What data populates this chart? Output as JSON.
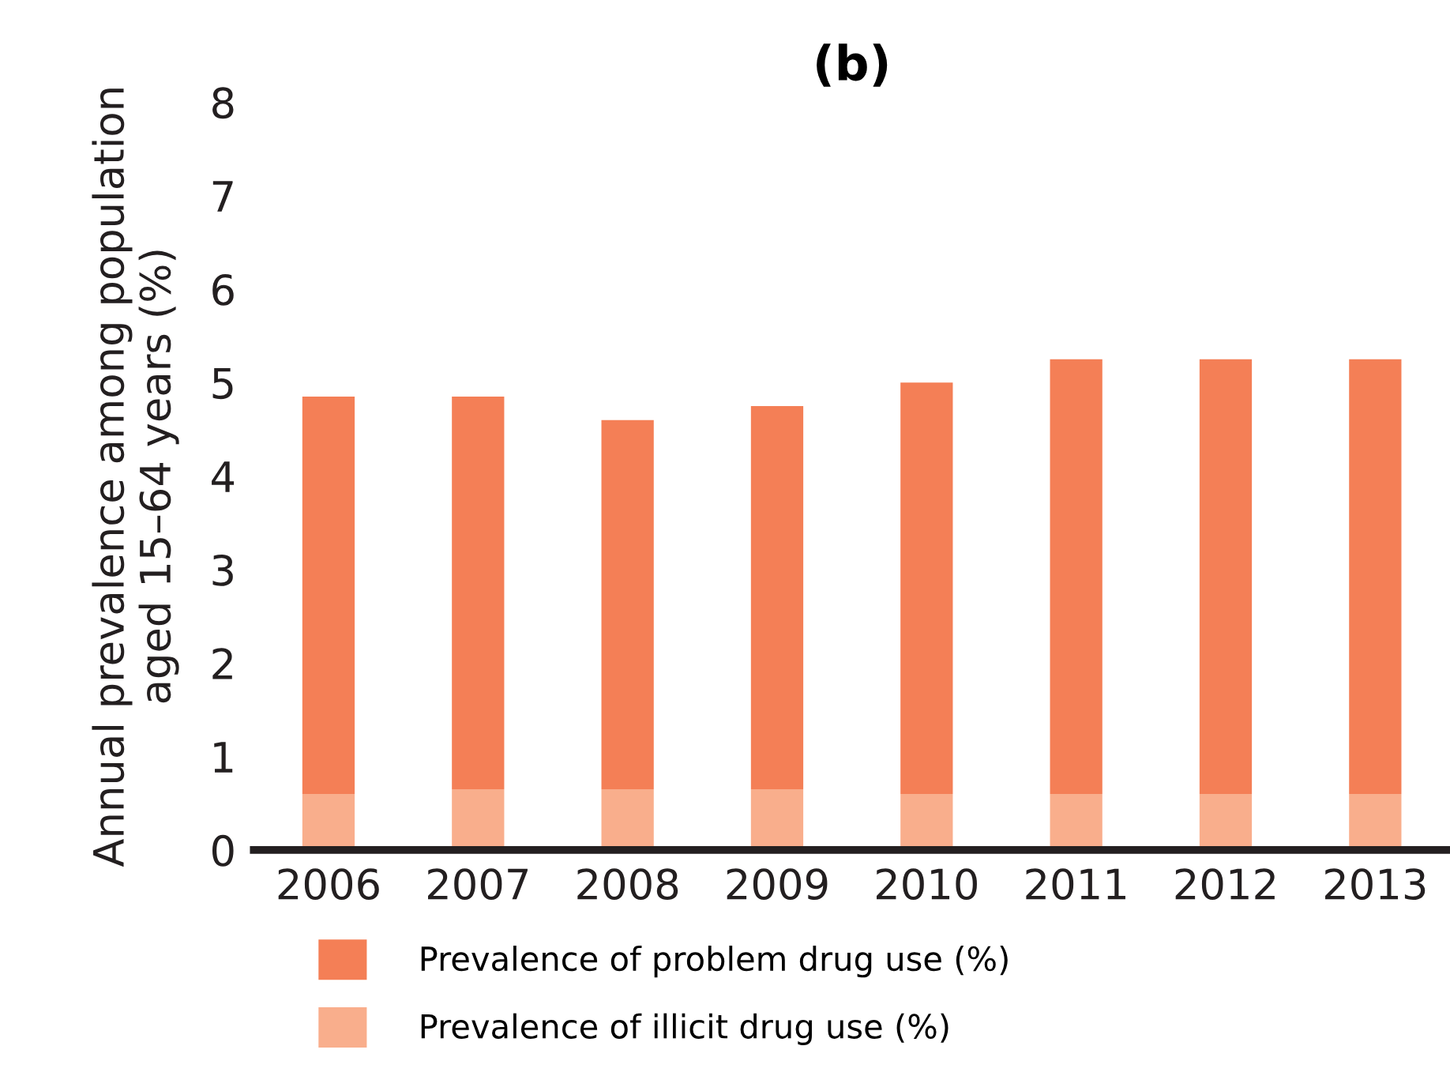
{
  "chart_data": {
    "type": "bar",
    "title": "(b)",
    "ylabel": "Annual prevalence among population\naged 15–64 years (%)",
    "categories": [
      "2006",
      "2007",
      "2008",
      "2009",
      "2010",
      "2011",
      "2012",
      "2013"
    ],
    "stacked": true,
    "series": [
      {
        "name": "Prevalence of illicit drug use (%)",
        "color": "#f9ae8c",
        "values": [
          0.6,
          0.65,
          0.65,
          0.65,
          0.6,
          0.6,
          0.6,
          0.6
        ]
      },
      {
        "name": "Prevalence of problem drug use (%)",
        "color": "#f47f56",
        "values": [
          4.25,
          4.2,
          3.95,
          4.1,
          4.4,
          4.65,
          4.65,
          4.65
        ]
      }
    ],
    "ylim": [
      0,
      8
    ],
    "yticks": [
      0,
      1,
      2,
      3,
      4,
      5,
      6,
      7,
      8
    ],
    "grid": false,
    "legend": "bottom"
  }
}
